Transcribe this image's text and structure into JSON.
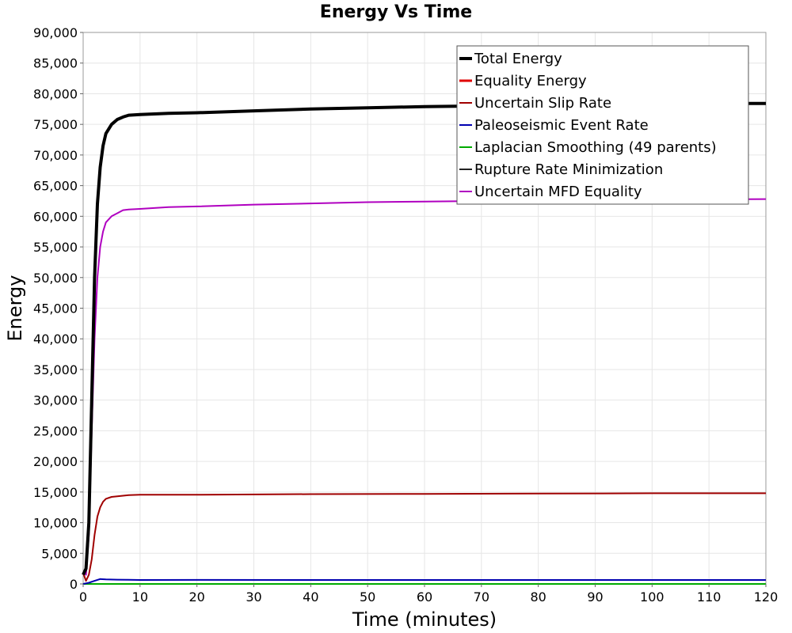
{
  "chart_data": {
    "type": "line",
    "title": "Energy Vs Time",
    "xlabel": "Time (minutes)",
    "ylabel": "Energy",
    "xlim": [
      0,
      120
    ],
    "ylim": [
      0,
      90000
    ],
    "x_ticks": [
      0,
      10,
      20,
      30,
      40,
      50,
      60,
      70,
      80,
      90,
      100,
      110,
      120
    ],
    "y_ticks": [
      0,
      5000,
      10000,
      15000,
      20000,
      25000,
      30000,
      35000,
      40000,
      45000,
      50000,
      55000,
      60000,
      65000,
      70000,
      75000,
      80000,
      85000,
      90000
    ],
    "grid": true,
    "legend_position": "top-right",
    "series": [
      {
        "name": "Total Energy",
        "color": "#000000",
        "width": 4,
        "x": [
          0,
          0.5,
          1,
          1.5,
          2,
          2.5,
          3,
          3.5,
          4,
          5,
          6,
          7,
          8,
          10,
          15,
          20,
          30,
          40,
          50,
          60,
          70,
          80,
          90,
          100,
          110,
          120
        ],
        "y": [
          1500,
          2500,
          10000,
          30000,
          50000,
          62000,
          68000,
          71500,
          73500,
          75000,
          75800,
          76200,
          76500,
          76600,
          76800,
          76900,
          77200,
          77500,
          77700,
          77900,
          78000,
          78100,
          78200,
          78300,
          78400,
          78400
        ]
      },
      {
        "name": "Equality Energy",
        "color": "#e00000",
        "width": 3,
        "x": [
          0,
          0.5,
          1,
          1.5,
          2,
          2.5,
          3,
          3.5,
          4,
          5,
          6,
          7,
          8,
          10,
          15,
          20,
          30,
          40,
          50,
          60,
          70,
          80,
          90,
          100,
          110,
          120
        ],
        "y": [
          1500,
          2500,
          10000,
          30000,
          50000,
          62000,
          68000,
          71500,
          73500,
          75000,
          75800,
          76200,
          76500,
          76600,
          76800,
          76900,
          77200,
          77500,
          77700,
          77900,
          78000,
          78100,
          78200,
          78300,
          78400,
          78400
        ]
      },
      {
        "name": "Uncertain Slip Rate",
        "color": "#a00000",
        "width": 2,
        "x": [
          0,
          0.5,
          1,
          1.5,
          2,
          2.5,
          3,
          3.5,
          4,
          5,
          6,
          7,
          8,
          10,
          20,
          30,
          40,
          60,
          80,
          100,
          120
        ],
        "y": [
          1800,
          500,
          1500,
          4000,
          8000,
          11000,
          12500,
          13400,
          13900,
          14200,
          14300,
          14400,
          14500,
          14550,
          14550,
          14600,
          14650,
          14700,
          14750,
          14800,
          14800
        ]
      },
      {
        "name": "Paleoseismic Event Rate",
        "color": "#0000b0",
        "width": 2,
        "x": [
          0,
          1,
          2,
          3,
          4,
          6,
          8,
          10,
          20,
          40,
          60,
          80,
          100,
          120
        ],
        "y": [
          0,
          200,
          500,
          800,
          750,
          700,
          680,
          650,
          660,
          650,
          640,
          640,
          640,
          640
        ]
      },
      {
        "name": "Laplacian Smoothing (49 parents)",
        "color": "#00aa00",
        "width": 2,
        "x": [
          0,
          120
        ],
        "y": [
          0,
          0
        ]
      },
      {
        "name": "Rupture Rate Minimization",
        "color": "#222222",
        "width": 2,
        "x": [
          0,
          120
        ],
        "y": [
          0,
          0
        ]
      },
      {
        "name": "Uncertain MFD Equality",
        "color": "#b000c0",
        "width": 2,
        "x": [
          0,
          0.5,
          1,
          1.5,
          2,
          2.5,
          3,
          3.5,
          4,
          5,
          6,
          7,
          8,
          10,
          15,
          20,
          30,
          40,
          50,
          60,
          70,
          80,
          90,
          100,
          110,
          120
        ],
        "y": [
          2000,
          1500,
          8000,
          25000,
          40000,
          50000,
          55000,
          57500,
          59000,
          60000,
          60500,
          61000,
          61100,
          61200,
          61500,
          61600,
          61900,
          62100,
          62300,
          62400,
          62500,
          62600,
          62650,
          62700,
          62750,
          62800
        ]
      }
    ]
  }
}
